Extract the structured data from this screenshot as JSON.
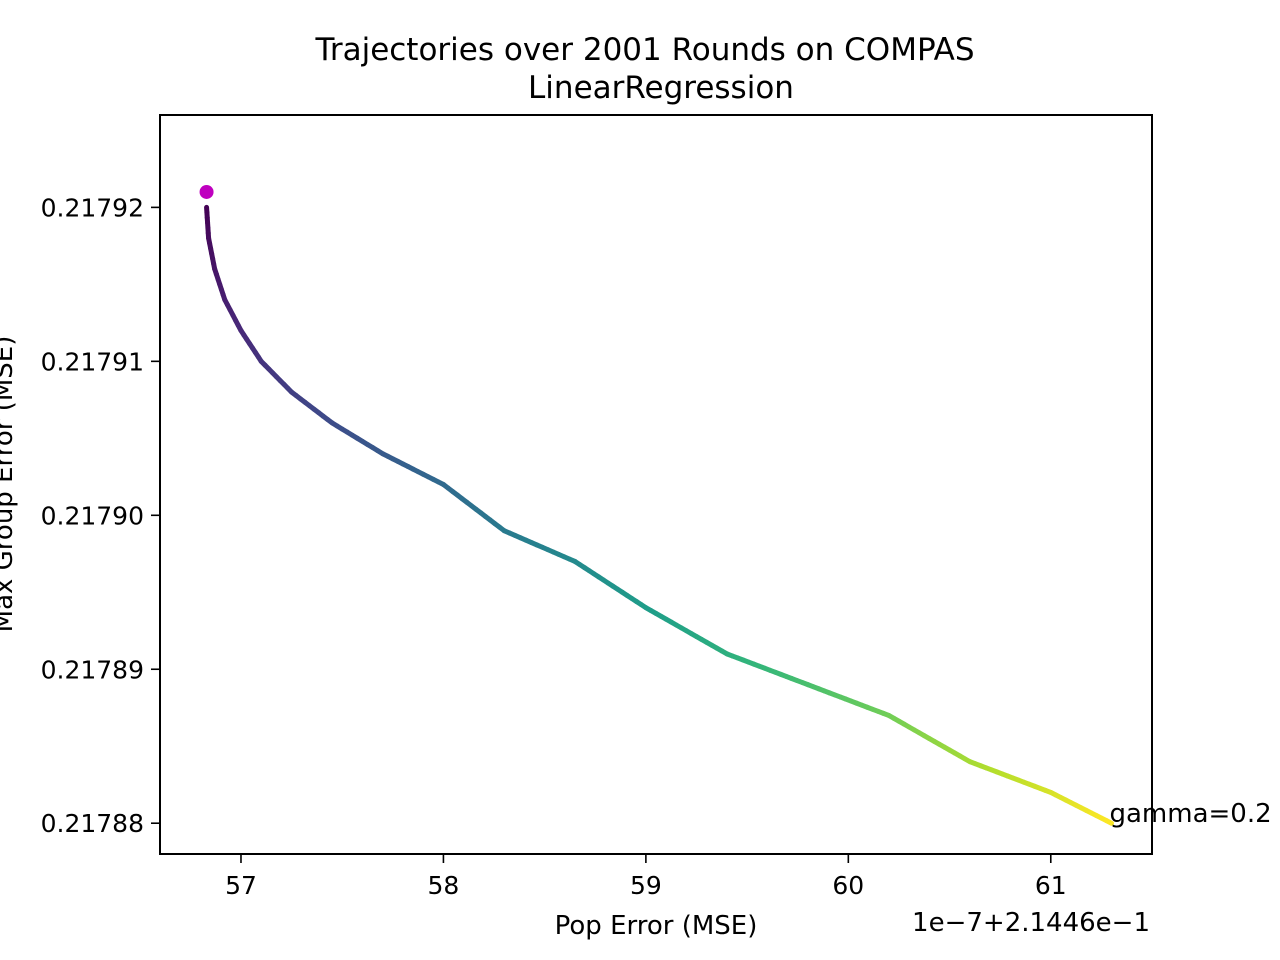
{
  "chart_data": {
    "type": "line",
    "title": "Trajectories over 2001 Rounds on COMPAS",
    "subtitle": "LinearRegression",
    "xlabel": "Pop Error (MSE)",
    "ylabel": "Max Group Error (MSE)",
    "x_offset_label": "1e−7+2.1446e−1",
    "xlim": [
      56.6,
      61.5
    ],
    "ylim": [
      0.217878,
      0.217926
    ],
    "xticks": [
      57,
      58,
      59,
      60,
      61
    ],
    "xtick_labels": [
      "57",
      "58",
      "59",
      "60",
      "61"
    ],
    "yticks": [
      0.21788,
      0.21789,
      0.2179,
      0.21791,
      0.21792
    ],
    "ytick_labels": [
      "0.21788",
      "0.21789",
      "0.21790",
      "0.21791",
      "0.21792"
    ],
    "grid": false,
    "colormap": "viridis",
    "series": [
      {
        "x": [
          56.83,
          56.84,
          56.87,
          56.92,
          57.0,
          57.1,
          57.25,
          57.45,
          57.7,
          58.0,
          58.3,
          58.65,
          59.0,
          59.4,
          59.8,
          60.2,
          60.6,
          61.0,
          61.3
        ],
        "y": [
          0.21792,
          0.217918,
          0.217916,
          0.217914,
          0.217912,
          0.21791,
          0.217908,
          0.217906,
          0.217904,
          0.217902,
          0.217899,
          0.217897,
          0.217894,
          0.217891,
          0.217889,
          0.217887,
          0.217884,
          0.217882,
          0.21788
        ]
      }
    ],
    "start_marker": {
      "x": 56.83,
      "y": 0.217921,
      "color": "#bf00bf"
    },
    "annotation": {
      "text": "gamma=0.2",
      "x": 61.3,
      "y": 0.21788
    }
  }
}
